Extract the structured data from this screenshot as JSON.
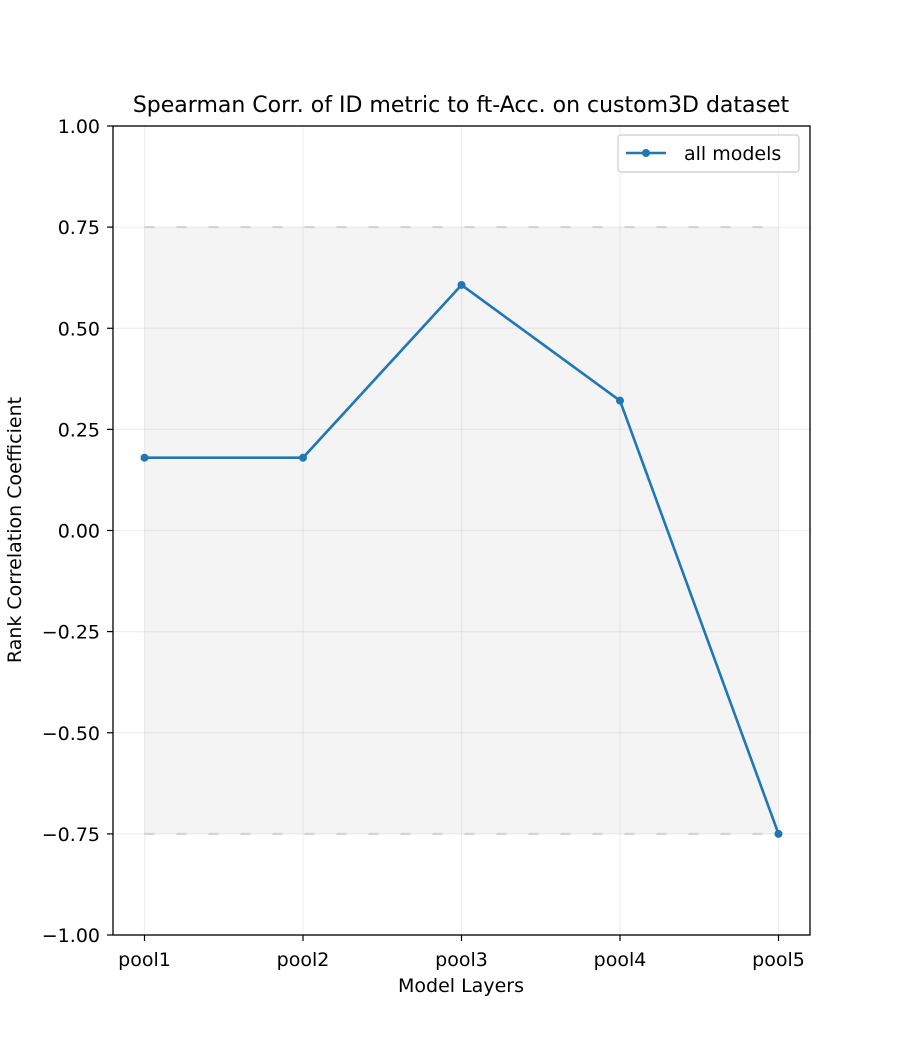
{
  "chart_data": {
    "type": "line",
    "title": "Spearman Corr. of ID metric to ft-Acc. on custom3D dataset",
    "xlabel": "Model Layers",
    "ylabel": "Rank Correlation Coefficient",
    "categories": [
      "pool1",
      "pool2",
      "pool3",
      "pool4",
      "pool5"
    ],
    "ylim": [
      -1.0,
      1.0
    ],
    "yticks": [
      -1.0,
      -0.75,
      -0.5,
      -0.25,
      0.0,
      0.25,
      0.5,
      0.75,
      1.0
    ],
    "ytick_labels": [
      "−1.00",
      "−0.75",
      "−0.50",
      "−0.25",
      "0.00",
      "0.25",
      "0.50",
      "0.75",
      "1.00"
    ],
    "grid": true,
    "legend_placement": "top-right",
    "band": {
      "lower": -0.75,
      "upper": 0.75,
      "fill": "#f4f4f4",
      "edge": "#d9d9d9"
    },
    "series": [
      {
        "name": "all models",
        "color": "#1f77b4",
        "marker": "circle",
        "values": [
          0.18,
          0.18,
          0.607,
          0.321,
          -0.75
        ]
      }
    ]
  }
}
